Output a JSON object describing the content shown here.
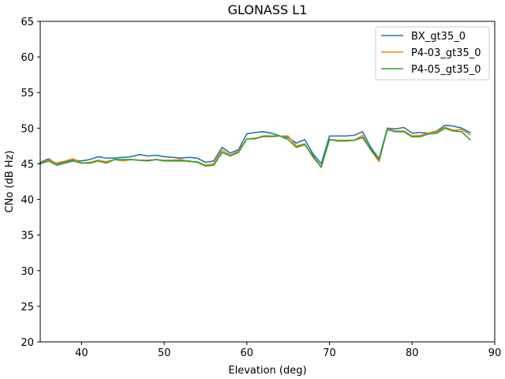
{
  "chart_data": {
    "type": "line",
    "title": "GLONASS L1",
    "xlabel": "Elevation (deg)",
    "ylabel": "CNo (dB Hz)",
    "xlim": [
      35,
      90
    ],
    "ylim": [
      20,
      65
    ],
    "xticks": [
      40,
      50,
      60,
      70,
      80,
      90
    ],
    "yticks": [
      20,
      25,
      30,
      35,
      40,
      45,
      50,
      55,
      60,
      65
    ],
    "grid": false,
    "legend_position": "top-right",
    "x": [
      35,
      36,
      37,
      38,
      39,
      40,
      41,
      42,
      43,
      44,
      45,
      46,
      47,
      48,
      49,
      50,
      51,
      52,
      53,
      54,
      55,
      56,
      57,
      58,
      59,
      60,
      61,
      62,
      63,
      64,
      65,
      66,
      67,
      68,
      69,
      70,
      71,
      72,
      73,
      74,
      75,
      76,
      77,
      78,
      79,
      80,
      81,
      82,
      83,
      84,
      85,
      86,
      87
    ],
    "series": [
      {
        "name": "BX_gt35_0",
        "color": "#1f77b4",
        "values": [
          45.2,
          45.7,
          45.0,
          45.3,
          45.5,
          45.4,
          45.6,
          46.0,
          45.8,
          45.8,
          45.9,
          46.0,
          46.3,
          46.1,
          46.2,
          46.0,
          45.9,
          45.8,
          45.9,
          45.8,
          45.2,
          45.4,
          47.3,
          46.5,
          47.0,
          49.2,
          49.4,
          49.5,
          49.3,
          48.9,
          48.7,
          47.9,
          48.4,
          46.4,
          45.0,
          48.9,
          48.9,
          48.9,
          49.0,
          49.5,
          47.3,
          45.7,
          50.0,
          49.9,
          50.1,
          49.3,
          49.4,
          49.3,
          49.6,
          50.4,
          50.3,
          50.0,
          49.4
        ]
      },
      {
        "name": "P4-03_gt35_0",
        "color": "#ff7f0e",
        "values": [
          45.1,
          45.5,
          45.1,
          45.4,
          45.7,
          45.1,
          45.2,
          45.5,
          45.3,
          45.6,
          45.4,
          45.6,
          45.5,
          45.5,
          45.6,
          45.5,
          45.5,
          45.6,
          45.3,
          45.3,
          44.8,
          45.0,
          46.9,
          46.2,
          46.8,
          48.5,
          48.6,
          48.8,
          48.8,
          48.9,
          48.9,
          47.5,
          47.8,
          45.9,
          44.6,
          48.4,
          48.3,
          48.3,
          48.3,
          49.0,
          46.9,
          45.3,
          49.9,
          49.6,
          49.6,
          48.9,
          49.0,
          49.3,
          49.5,
          50.1,
          49.7,
          49.8,
          49.1
        ]
      },
      {
        "name": "P4-05_gt35_0",
        "color": "#2ca02c",
        "values": [
          45.0,
          45.4,
          44.8,
          45.1,
          45.4,
          45.1,
          45.1,
          45.4,
          45.1,
          45.6,
          45.6,
          45.6,
          45.5,
          45.4,
          45.6,
          45.4,
          45.4,
          45.4,
          45.4,
          45.2,
          44.7,
          44.8,
          46.6,
          46.1,
          46.6,
          48.5,
          48.5,
          48.9,
          48.9,
          48.9,
          48.4,
          47.3,
          47.7,
          46.1,
          44.5,
          48.4,
          48.2,
          48.2,
          48.3,
          48.7,
          47.0,
          45.6,
          49.8,
          49.5,
          49.5,
          48.8,
          48.8,
          49.2,
          49.3,
          50.0,
          49.6,
          49.5,
          48.4
        ]
      }
    ]
  }
}
